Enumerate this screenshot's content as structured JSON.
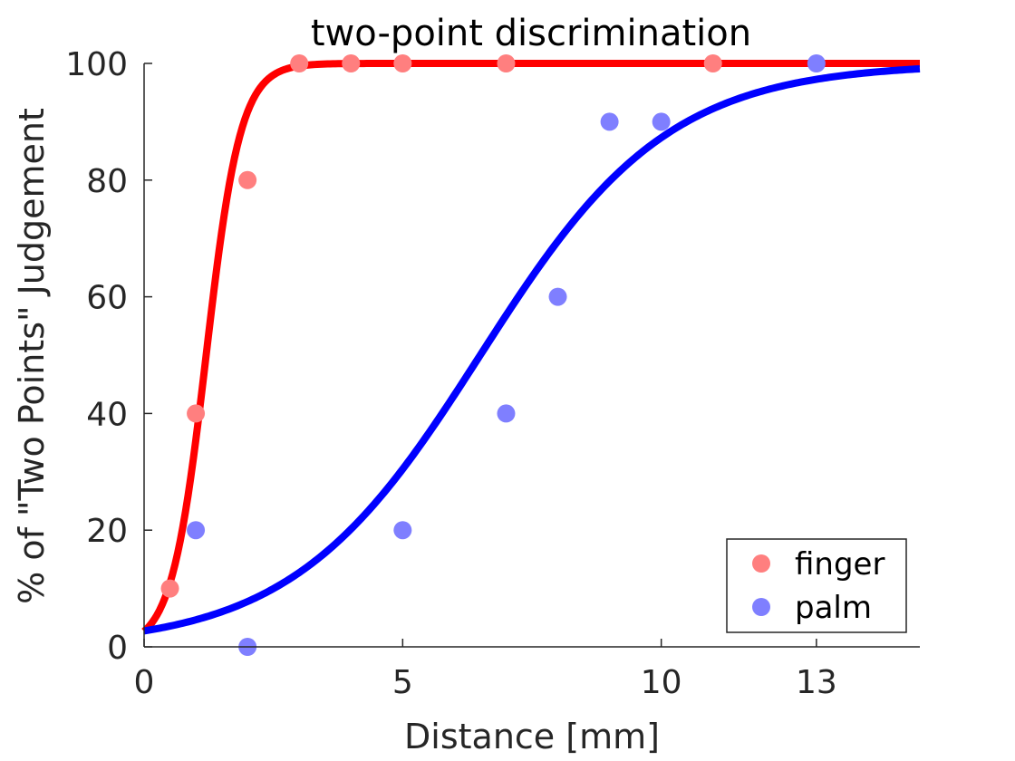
{
  "chart_data": {
    "type": "scatter",
    "title": "two-point discrimination",
    "xlabel": "Distance [mm]",
    "ylabel": "% of \"Two Points\" Judgement",
    "xlim": [
      0,
      15
    ],
    "ylim": [
      0,
      100
    ],
    "xticks": [
      0,
      5,
      10,
      13
    ],
    "yticks": [
      0,
      20,
      40,
      60,
      80,
      100
    ],
    "grid": false,
    "legend_position": "bottom-right",
    "series": [
      {
        "name": "finger",
        "marker_color": "#ff7f7f",
        "x": [
          0.5,
          1,
          2,
          3,
          4,
          5,
          7,
          11
        ],
        "y": [
          10,
          40,
          80,
          100,
          100,
          100,
          100,
          100
        ],
        "fit": {
          "type": "logistic",
          "midpoint": 1.2,
          "slope": 3.0,
          "color": "#ff0000"
        }
      },
      {
        "name": "palm",
        "marker_color": "#7f7fff",
        "x": [
          1,
          2,
          5,
          7,
          8,
          9,
          10,
          13
        ],
        "y": [
          20,
          0,
          20,
          40,
          60,
          90,
          90,
          100
        ],
        "fit": {
          "type": "logistic",
          "midpoint": 6.5,
          "slope": 0.55,
          "color": "#0000ff"
        }
      }
    ]
  }
}
